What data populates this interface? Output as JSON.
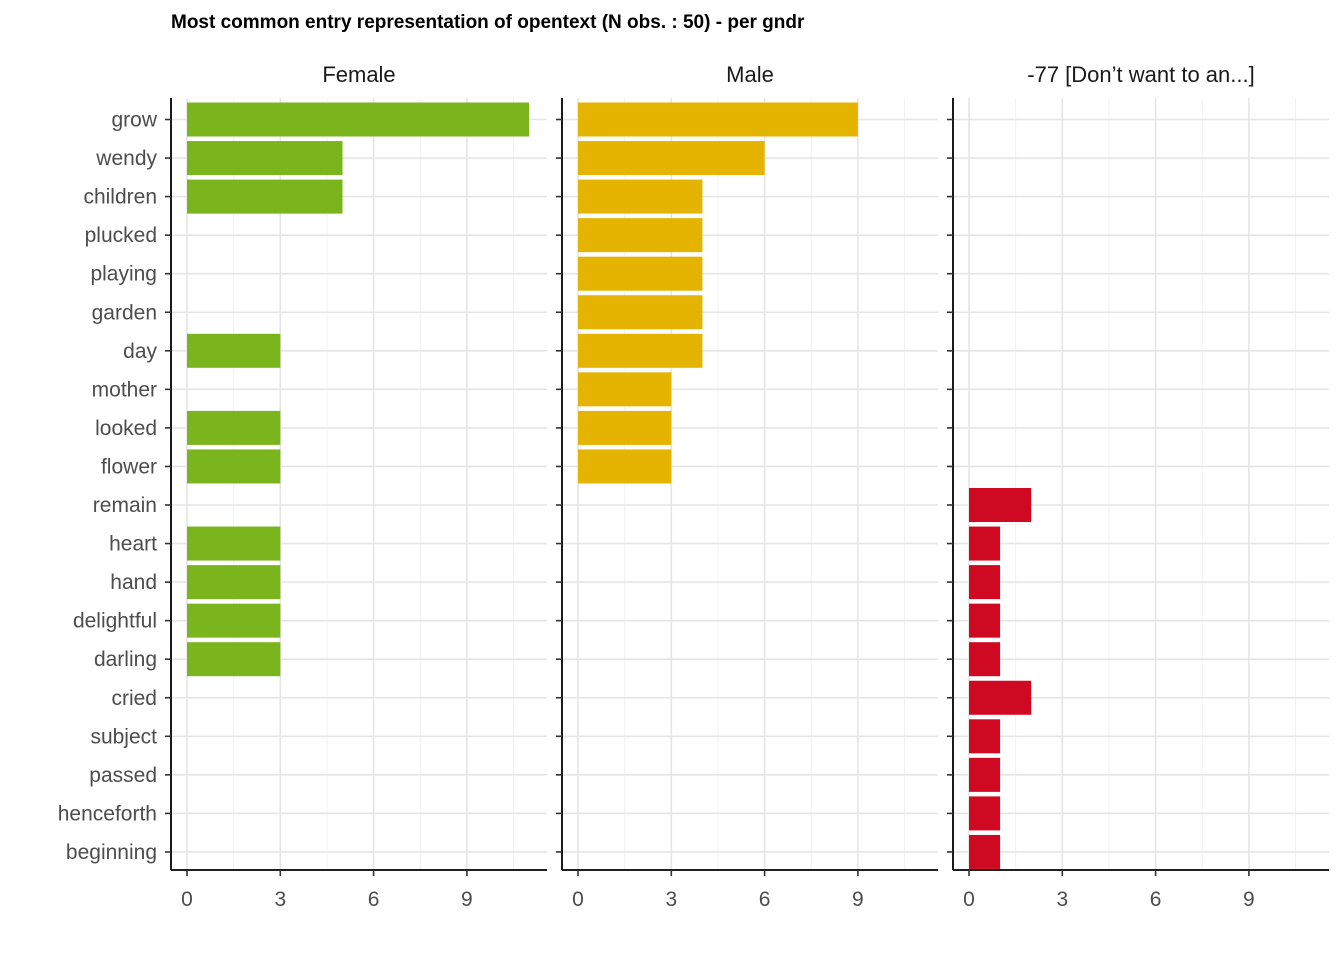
{
  "chart_data": {
    "type": "bar",
    "orientation": "horizontal",
    "title": "Most common entry representation of opentext (N obs. : 50) - per gndr",
    "categories": [
      "grow",
      "wendy",
      "children",
      "plucked",
      "playing",
      "garden",
      "day",
      "mother",
      "looked",
      "flower",
      "remain",
      "heart",
      "hand",
      "delightful",
      "darling",
      "cried",
      "subject",
      "passed",
      "henceforth",
      "beginning"
    ],
    "facets": [
      {
        "name": "Female",
        "color": "#7AB51D",
        "values": [
          11,
          5,
          5,
          0,
          0,
          0,
          3,
          0,
          3,
          3,
          0,
          3,
          3,
          3,
          3,
          0,
          0,
          0,
          0,
          0
        ]
      },
      {
        "name": "Male",
        "color": "#E5B400",
        "values": [
          9,
          6,
          4,
          4,
          4,
          4,
          4,
          3,
          3,
          3,
          0,
          0,
          0,
          0,
          0,
          0,
          0,
          0,
          0,
          0
        ]
      },
      {
        "name": "-77 [Don’t want to an...]",
        "color": "#CE0921",
        "values": [
          0,
          0,
          0,
          0,
          0,
          0,
          0,
          0,
          0,
          0,
          2,
          1,
          1,
          1,
          1,
          2,
          1,
          1,
          1,
          1
        ]
      }
    ],
    "x_ticks": [
      "0",
      "3",
      "6",
      "9"
    ],
    "xlim": [
      0,
      11.5
    ],
    "grid": true,
    "legend": "none"
  }
}
